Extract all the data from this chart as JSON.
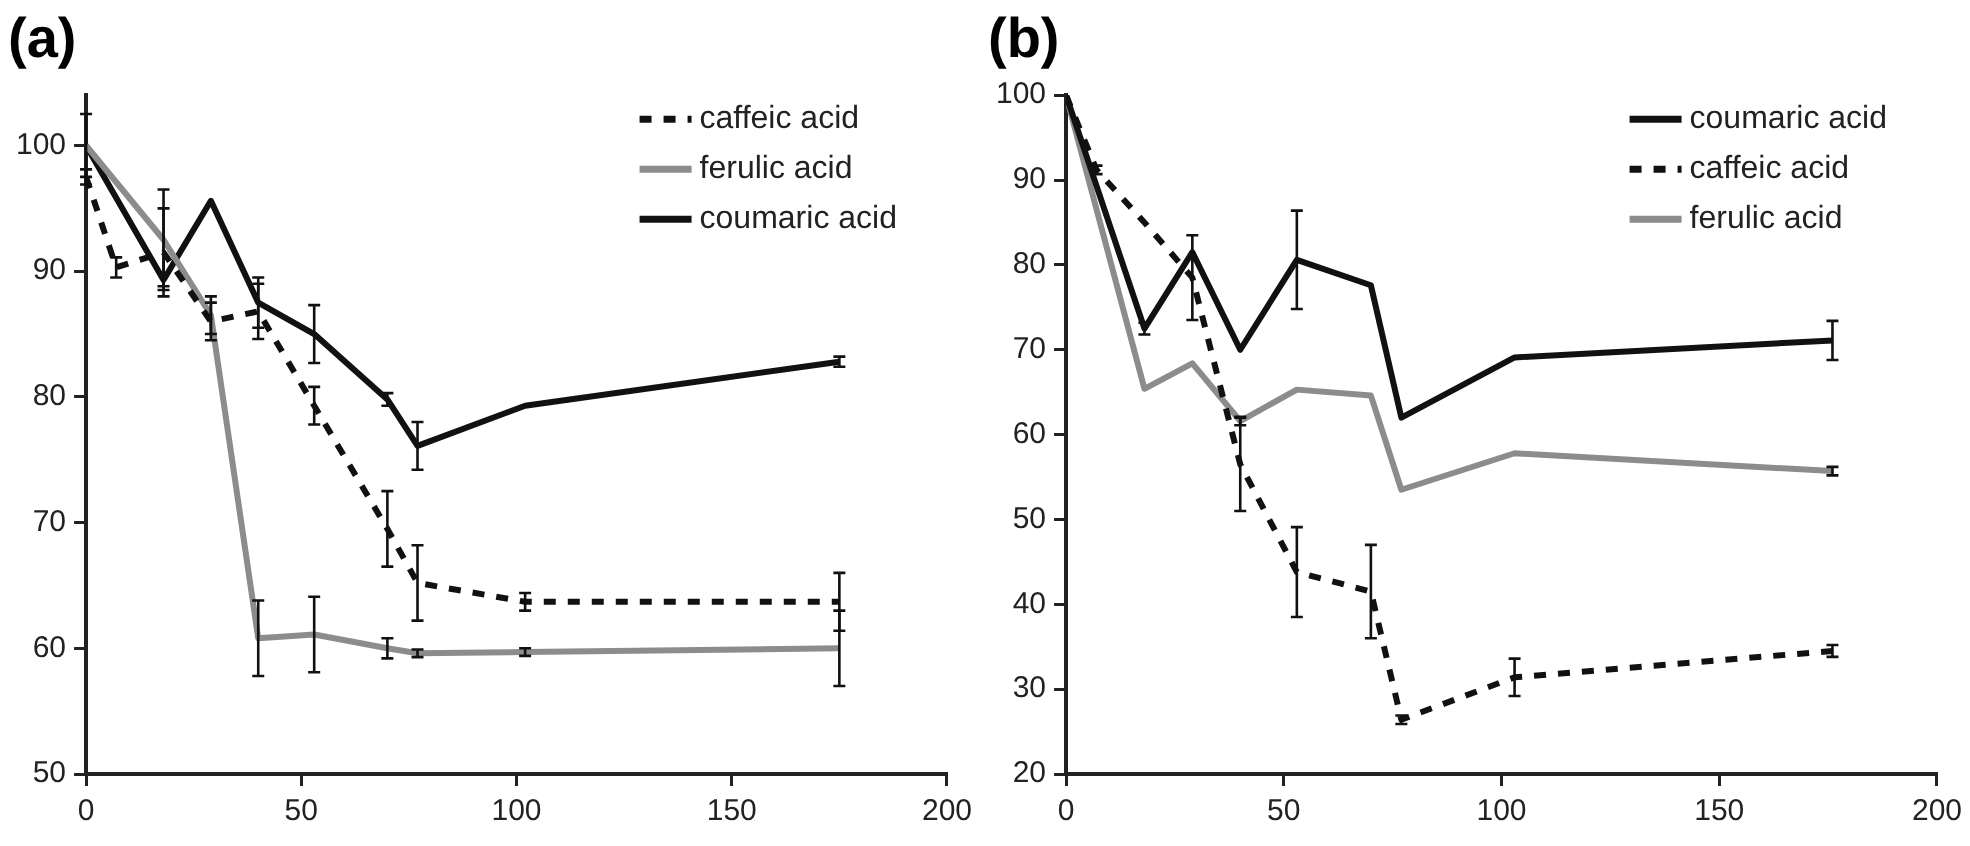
{
  "chart_data": [
    {
      "type": "line",
      "title": "(a)",
      "xlim": [
        0,
        200
      ],
      "xticks": [
        0,
        50,
        100,
        150,
        200
      ],
      "ylim": [
        50,
        104
      ],
      "yticks": [
        50,
        60,
        70,
        80,
        90,
        100
      ],
      "grid": false,
      "legend": "top right",
      "marker": "none",
      "series": [
        {
          "name": "caffeic acid",
          "color": "#111111",
          "line_style": "dashed",
          "x": [
            0,
            7,
            18,
            29,
            40,
            53,
            70,
            77,
            102,
            175
          ],
          "values": [
            97.5,
            90.3,
            91.5,
            86,
            86.8,
            79.3,
            69.5,
            65.2,
            63.7,
            63.7
          ],
          "errors": [
            0.6,
            0.8,
            3.5,
            1.5,
            2.2,
            1.5,
            3,
            3,
            0.7,
            2.3
          ]
        },
        {
          "name": "ferulic acid",
          "color": "#8c8c8c",
          "line_style": "solid",
          "x": [
            0,
            18,
            29,
            40,
            53,
            70,
            77,
            102,
            175
          ],
          "values": [
            100,
            92.5,
            86.5,
            60.8,
            61.1,
            60,
            59.6,
            59.7,
            60
          ],
          "errors": [
            2.5,
            4,
            1.5,
            3,
            3,
            0.8,
            0.3,
            0.3,
            3
          ]
        },
        {
          "name": "coumaric acid",
          "color": "#111111",
          "line_style": "solid",
          "x": [
            0,
            18,
            29,
            40,
            53,
            70,
            77,
            102,
            175
          ],
          "values": [
            100,
            89.3,
            95.6,
            87.5,
            85,
            79.8,
            76.1,
            79.3,
            82.8
          ],
          "errors": [
            null,
            0.5,
            null,
            2,
            2.3,
            0.5,
            1.9,
            null,
            0.4
          ]
        }
      ]
    },
    {
      "type": "line",
      "title": "(b)",
      "xlim": [
        0,
        200
      ],
      "xticks": [
        0,
        50,
        100,
        150,
        200
      ],
      "ylim": [
        20,
        100
      ],
      "yticks": [
        20,
        30,
        40,
        50,
        60,
        70,
        80,
        90,
        100
      ],
      "grid": false,
      "legend": "top right",
      "marker": "none",
      "series": [
        {
          "name": "coumaric acid",
          "color": "#111111",
          "line_style": "solid",
          "x": [
            0,
            18,
            29,
            40,
            53,
            70,
            77,
            103,
            176
          ],
          "values": [
            100,
            72.5,
            81.5,
            70,
            80.6,
            77.6,
            62,
            69.1,
            71.1
          ],
          "errors": [
            null,
            0.7,
            null,
            null,
            5.8,
            null,
            null,
            null,
            2.3
          ]
        },
        {
          "name": "caffeic acid",
          "color": "#111111",
          "line_style": "dashed",
          "x": [
            0,
            7,
            18,
            29,
            40,
            53,
            70,
            77,
            103,
            176
          ],
          "values": [
            100,
            91.2,
            85,
            78.5,
            56.5,
            43.8,
            41.5,
            26.4,
            31.4,
            34.5
          ],
          "errors": [
            null,
            0.5,
            null,
            5,
            5.5,
            5.3,
            5.5,
            0.5,
            2.2,
            0.7
          ]
        },
        {
          "name": "ferulic acid",
          "color": "#8c8c8c",
          "line_style": "solid",
          "x": [
            0,
            18,
            29,
            40,
            53,
            70,
            77,
            103,
            176
          ],
          "values": [
            100,
            65.4,
            68.4,
            61.6,
            65.3,
            64.6,
            53.5,
            57.8,
            55.7
          ],
          "errors": [
            null,
            null,
            null,
            0.5,
            null,
            null,
            null,
            null,
            0.5
          ]
        }
      ]
    }
  ]
}
